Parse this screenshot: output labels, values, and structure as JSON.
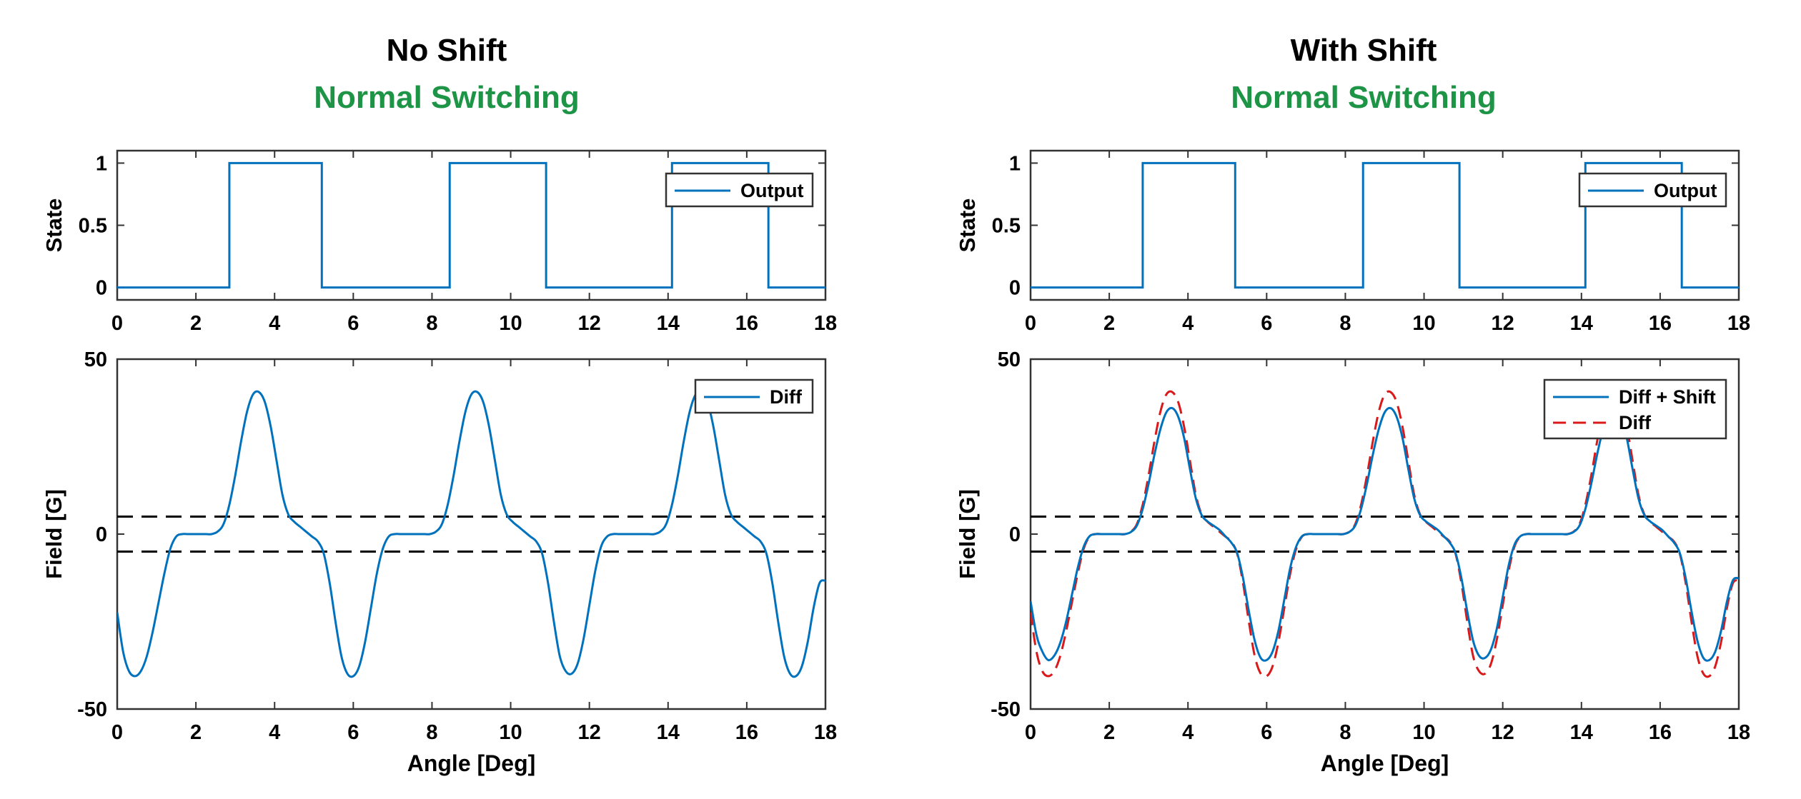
{
  "colors": {
    "series_blue": "#0072BD",
    "series_red": "#D9191A",
    "subtitle_green": "#1E9546",
    "threshold": "#000000"
  },
  "panels": [
    {
      "title": "No Shift",
      "subtitle": "Normal Switching"
    },
    {
      "title": "With Shift",
      "subtitle": "Normal Switching"
    }
  ],
  "chart_data": [
    {
      "type": "line",
      "title": "No Shift",
      "xlabel": "",
      "ylabel": "State",
      "xlim": [
        0,
        18
      ],
      "ylim": [
        -0.1,
        1.1
      ],
      "xticks": [
        "0",
        "2",
        "4",
        "6",
        "8",
        "10",
        "12",
        "14",
        "16",
        "18"
      ],
      "yticks": [
        "0",
        "0.5",
        "1"
      ],
      "legend": {
        "position": "top-right",
        "entries": [
          "Output"
        ]
      },
      "series": [
        {
          "name": "Output",
          "style": "step",
          "x": [
            0,
            2.85,
            2.85,
            5.2,
            5.2,
            8.45,
            8.45,
            10.9,
            10.9,
            14.1,
            14.1,
            16.55,
            16.55,
            18
          ],
          "y": [
            0,
            0,
            1,
            1,
            0,
            0,
            1,
            1,
            0,
            0,
            1,
            1,
            0,
            0
          ]
        }
      ]
    },
    {
      "type": "line",
      "xlabel": "Angle [Deg]",
      "ylabel": "Field [G]",
      "xlim": [
        0,
        18
      ],
      "ylim": [
        -50,
        50
      ],
      "xticks": [
        "0",
        "2",
        "4",
        "6",
        "8",
        "10",
        "12",
        "14",
        "16",
        "18"
      ],
      "yticks": [
        "-50",
        "0",
        "50"
      ],
      "thresholds": [
        5,
        -5
      ],
      "legend": {
        "position": "top-right",
        "entries": [
          "Diff"
        ]
      },
      "series": [
        {
          "name": "Diff",
          "style": "solid",
          "x": [
            0,
            0.15,
            0.3,
            0.45,
            0.6,
            0.75,
            0.9,
            1.05,
            1.2,
            1.35,
            1.5,
            1.65,
            1.8,
            1.95,
            2.1,
            2.25,
            2.4,
            2.55,
            2.7,
            2.85,
            3.0,
            3.15,
            3.3,
            3.45,
            3.6,
            3.75,
            3.9,
            4.05,
            4.2,
            4.35,
            4.5,
            4.65,
            4.8,
            4.95,
            5.1,
            5.25,
            5.4,
            5.55,
            5.7,
            5.85,
            6.0,
            6.15,
            6.3,
            6.45,
            6.6,
            6.75,
            6.9,
            7.05,
            7.2,
            7.35,
            7.5,
            7.65,
            7.8,
            7.95,
            8.1,
            8.25,
            8.4,
            8.55,
            8.7,
            8.85,
            9.0,
            9.15,
            9.3,
            9.45,
            9.6,
            9.75,
            9.9,
            10.05,
            10.2,
            10.35,
            10.5,
            10.65,
            10.8,
            10.95,
            11.1,
            11.25,
            11.4,
            11.55,
            11.7,
            11.85,
            12.0,
            12.15,
            12.3,
            12.45,
            12.6,
            12.75,
            12.9,
            13.05,
            13.2,
            13.35,
            13.5,
            13.65,
            13.8,
            13.95,
            14.1,
            14.25,
            14.4,
            14.55,
            14.7,
            14.85,
            15.0,
            15.15,
            15.3,
            15.45,
            15.6,
            15.75,
            15.9,
            16.05,
            16.2,
            16.35,
            16.5,
            16.65,
            16.8,
            16.95,
            17.1,
            17.25,
            17.4,
            17.55,
            17.7,
            17.85,
            18.0
          ],
          "y": [
            -22.4,
            -33.6,
            -39.2,
            -40.6,
            -39.2,
            -35.0,
            -28.0,
            -19.6,
            -11.2,
            -4.2,
            -0.7,
            0.0,
            0.0,
            0.0,
            0.0,
            0.0,
            0.0,
            0.7,
            2.8,
            8.4,
            16.8,
            26.6,
            35.0,
            39.9,
            40.6,
            37.8,
            30.8,
            21.0,
            11.2,
            5.6,
            3.5,
            2.1,
            0.7,
            -0.7,
            -2.1,
            -5.6,
            -14.0,
            -25.2,
            -35.0,
            -39.9,
            -40.6,
            -37.8,
            -30.8,
            -21.0,
            -11.2,
            -4.2,
            -0.7,
            0.0,
            0.0,
            0.0,
            0.0,
            0.0,
            0.0,
            0.0,
            0.7,
            2.8,
            8.4,
            16.8,
            26.6,
            35.0,
            39.9,
            40.6,
            37.8,
            30.8,
            21.0,
            11.2,
            5.6,
            3.5,
            2.1,
            0.7,
            -0.7,
            -2.1,
            -5.6,
            -14.0,
            -25.2,
            -35.0,
            -39.2,
            -39.9,
            -37.1,
            -30.1,
            -20.3,
            -10.5,
            -3.5,
            -0.7,
            0.0,
            0.0,
            0.0,
            0.0,
            0.0,
            0.0,
            0.0,
            0.0,
            0.7,
            2.8,
            8.4,
            16.8,
            26.6,
            35.0,
            39.9,
            40.6,
            37.8,
            30.8,
            21.0,
            11.2,
            5.6,
            3.5,
            2.1,
            0.7,
            -0.7,
            -2.1,
            -5.6,
            -14.0,
            -25.2,
            -35.0,
            -39.9,
            -40.6,
            -37.8,
            -30.8,
            -21.0,
            -14.0,
            -13.3
          ]
        }
      ]
    },
    {
      "type": "line",
      "title": "With Shift",
      "xlabel": "",
      "ylabel": "State",
      "xlim": [
        0,
        18
      ],
      "ylim": [
        -0.1,
        1.1
      ],
      "xticks": [
        "0",
        "2",
        "4",
        "6",
        "8",
        "10",
        "12",
        "14",
        "16",
        "18"
      ],
      "yticks": [
        "0",
        "0.5",
        "1"
      ],
      "legend": {
        "position": "top-right",
        "entries": [
          "Output"
        ]
      },
      "series": [
        {
          "name": "Output",
          "style": "step",
          "x": [
            0,
            2.85,
            2.85,
            5.2,
            5.2,
            8.45,
            8.45,
            10.9,
            10.9,
            14.1,
            14.1,
            16.55,
            16.55,
            18
          ],
          "y": [
            0,
            0,
            1,
            1,
            0,
            0,
            1,
            1,
            0,
            0,
            1,
            1,
            0,
            0
          ]
        }
      ]
    },
    {
      "type": "line",
      "xlabel": "Angle [Deg]",
      "ylabel": "Field [G]",
      "xlim": [
        0,
        18
      ],
      "ylim": [
        -50,
        50
      ],
      "xticks": [
        "0",
        "2",
        "4",
        "6",
        "8",
        "10",
        "12",
        "14",
        "16",
        "18"
      ],
      "yticks": [
        "-50",
        "0",
        "50"
      ],
      "thresholds": [
        5,
        -5
      ],
      "legend": {
        "position": "top-right",
        "entries": [
          "Diff + Shift",
          "Diff"
        ]
      },
      "series": [
        {
          "name": "Diff + Shift",
          "style": "solid",
          "x": [
            0,
            0.15,
            0.3,
            0.45,
            0.6,
            0.75,
            0.9,
            1.05,
            1.2,
            1.35,
            1.5,
            1.65,
            1.8,
            1.95,
            2.1,
            2.25,
            2.4,
            2.55,
            2.7,
            2.85,
            3.0,
            3.15,
            3.3,
            3.45,
            3.6,
            3.75,
            3.9,
            4.05,
            4.2,
            4.35,
            4.5,
            4.65,
            4.8,
            4.95,
            5.1,
            5.25,
            5.4,
            5.55,
            5.7,
            5.85,
            6.0,
            6.15,
            6.3,
            6.45,
            6.6,
            6.75,
            6.9,
            7.05,
            7.2,
            7.35,
            7.5,
            7.65,
            7.8,
            7.95,
            8.1,
            8.25,
            8.4,
            8.55,
            8.7,
            8.85,
            9.0,
            9.15,
            9.3,
            9.45,
            9.6,
            9.75,
            9.9,
            10.05,
            10.2,
            10.35,
            10.5,
            10.65,
            10.8,
            10.95,
            11.1,
            11.25,
            11.4,
            11.55,
            11.7,
            11.85,
            12.0,
            12.15,
            12.3,
            12.45,
            12.6,
            12.75,
            12.9,
            13.05,
            13.2,
            13.35,
            13.5,
            13.65,
            13.8,
            13.95,
            14.1,
            14.25,
            14.4,
            14.55,
            14.7,
            14.85,
            15.0,
            15.15,
            15.3,
            15.45,
            15.6,
            15.75,
            15.9,
            16.05,
            16.2,
            16.35,
            16.5,
            16.65,
            16.8,
            16.95,
            17.1,
            17.25,
            17.4,
            17.55,
            17.7,
            17.85,
            18.0
          ],
          "y": [
            -19.2,
            -28.8,
            -33.6,
            -36.0,
            -34.8,
            -31.2,
            -25.2,
            -17.4,
            -9.6,
            -3.6,
            -0.6,
            0.0,
            0.0,
            0.0,
            0.0,
            0.0,
            0.0,
            0.6,
            2.4,
            7.2,
            14.4,
            22.8,
            30.0,
            34.8,
            36.0,
            33.6,
            27.6,
            18.6,
            10.2,
            5.4,
            3.6,
            2.4,
            1.2,
            -0.6,
            -2.4,
            -5.4,
            -12.6,
            -22.2,
            -30.6,
            -35.4,
            -36.0,
            -33.6,
            -27.6,
            -18.6,
            -9.6,
            -3.6,
            -0.6,
            0.0,
            0.0,
            0.0,
            0.0,
            0.0,
            0.0,
            0.0,
            0.6,
            2.4,
            7.2,
            14.4,
            22.8,
            30.0,
            34.8,
            36.0,
            33.6,
            27.6,
            18.6,
            10.2,
            5.4,
            3.6,
            2.4,
            1.2,
            -0.6,
            -2.4,
            -5.4,
            -12.6,
            -22.2,
            -30.6,
            -34.8,
            -35.4,
            -33.0,
            -27.0,
            -18.0,
            -9.0,
            -3.0,
            -0.6,
            0.0,
            0.0,
            0.0,
            0.0,
            0.0,
            0.0,
            0.0,
            0.0,
            0.6,
            2.4,
            7.2,
            14.4,
            22.8,
            30.0,
            34.8,
            36.0,
            33.6,
            27.6,
            18.6,
            10.2,
            5.4,
            3.6,
            2.4,
            1.2,
            -0.6,
            -2.4,
            -5.4,
            -12.6,
            -22.2,
            -30.6,
            -35.4,
            -36.0,
            -33.6,
            -27.6,
            -19.2,
            -13.2,
            -12.6
          ]
        },
        {
          "name": "Diff",
          "style": "dashed",
          "x": [
            0,
            0.15,
            0.3,
            0.45,
            0.6,
            0.75,
            0.9,
            1.05,
            1.2,
            1.35,
            1.5,
            1.65,
            1.8,
            1.95,
            2.1,
            2.25,
            2.4,
            2.55,
            2.7,
            2.85,
            3.0,
            3.15,
            3.3,
            3.45,
            3.6,
            3.75,
            3.9,
            4.05,
            4.2,
            4.35,
            4.5,
            4.65,
            4.8,
            4.95,
            5.1,
            5.25,
            5.4,
            5.55,
            5.7,
            5.85,
            6.0,
            6.15,
            6.3,
            6.45,
            6.6,
            6.75,
            6.9,
            7.05,
            7.2,
            7.35,
            7.5,
            7.65,
            7.8,
            7.95,
            8.1,
            8.25,
            8.4,
            8.55,
            8.7,
            8.85,
            9.0,
            9.15,
            9.3,
            9.45,
            9.6,
            9.75,
            9.9,
            10.05,
            10.2,
            10.35,
            10.5,
            10.65,
            10.8,
            10.95,
            11.1,
            11.25,
            11.4,
            11.55,
            11.7,
            11.85,
            12.0,
            12.15,
            12.3,
            12.45,
            12.6,
            12.75,
            12.9,
            13.05,
            13.2,
            13.35,
            13.5,
            13.65,
            13.8,
            13.95,
            14.1,
            14.25,
            14.4,
            14.55,
            14.7,
            14.85,
            15.0,
            15.15,
            15.3,
            15.45,
            15.6,
            15.75,
            15.9,
            16.05,
            16.2,
            16.35,
            16.5,
            16.65,
            16.8,
            16.95,
            17.1,
            17.25,
            17.4,
            17.55,
            17.7,
            17.85,
            18.0
          ],
          "y": [
            -22.4,
            -33.6,
            -39.2,
            -40.6,
            -39.2,
            -35.0,
            -28.0,
            -19.6,
            -11.2,
            -4.2,
            -0.7,
            0.0,
            0.0,
            0.0,
            0.0,
            0.0,
            0.0,
            0.7,
            2.8,
            8.4,
            16.8,
            26.6,
            35.0,
            39.9,
            40.6,
            37.8,
            30.8,
            21.0,
            11.2,
            5.6,
            3.5,
            2.1,
            0.7,
            -0.7,
            -2.1,
            -5.6,
            -14.0,
            -25.2,
            -35.0,
            -39.9,
            -40.6,
            -37.8,
            -30.8,
            -21.0,
            -11.2,
            -4.2,
            -0.7,
            0.0,
            0.0,
            0.0,
            0.0,
            0.0,
            0.0,
            0.0,
            0.7,
            2.8,
            8.4,
            16.8,
            26.6,
            35.0,
            39.9,
            40.6,
            37.8,
            30.8,
            21.0,
            11.2,
            5.6,
            3.5,
            2.1,
            0.7,
            -0.7,
            -2.1,
            -5.6,
            -14.0,
            -25.2,
            -35.0,
            -39.2,
            -39.9,
            -37.1,
            -30.1,
            -20.3,
            -10.5,
            -3.5,
            -0.7,
            0.0,
            0.0,
            0.0,
            0.0,
            0.0,
            0.0,
            0.0,
            0.0,
            0.7,
            2.8,
            8.4,
            16.8,
            26.6,
            35.0,
            39.9,
            40.6,
            37.8,
            30.8,
            21.0,
            11.2,
            5.6,
            3.5,
            2.1,
            0.7,
            -0.7,
            -2.1,
            -5.6,
            -14.0,
            -25.2,
            -35.0,
            -39.9,
            -40.6,
            -37.8,
            -30.8,
            -21.0,
            -14.0,
            -13.3
          ]
        }
      ]
    }
  ]
}
